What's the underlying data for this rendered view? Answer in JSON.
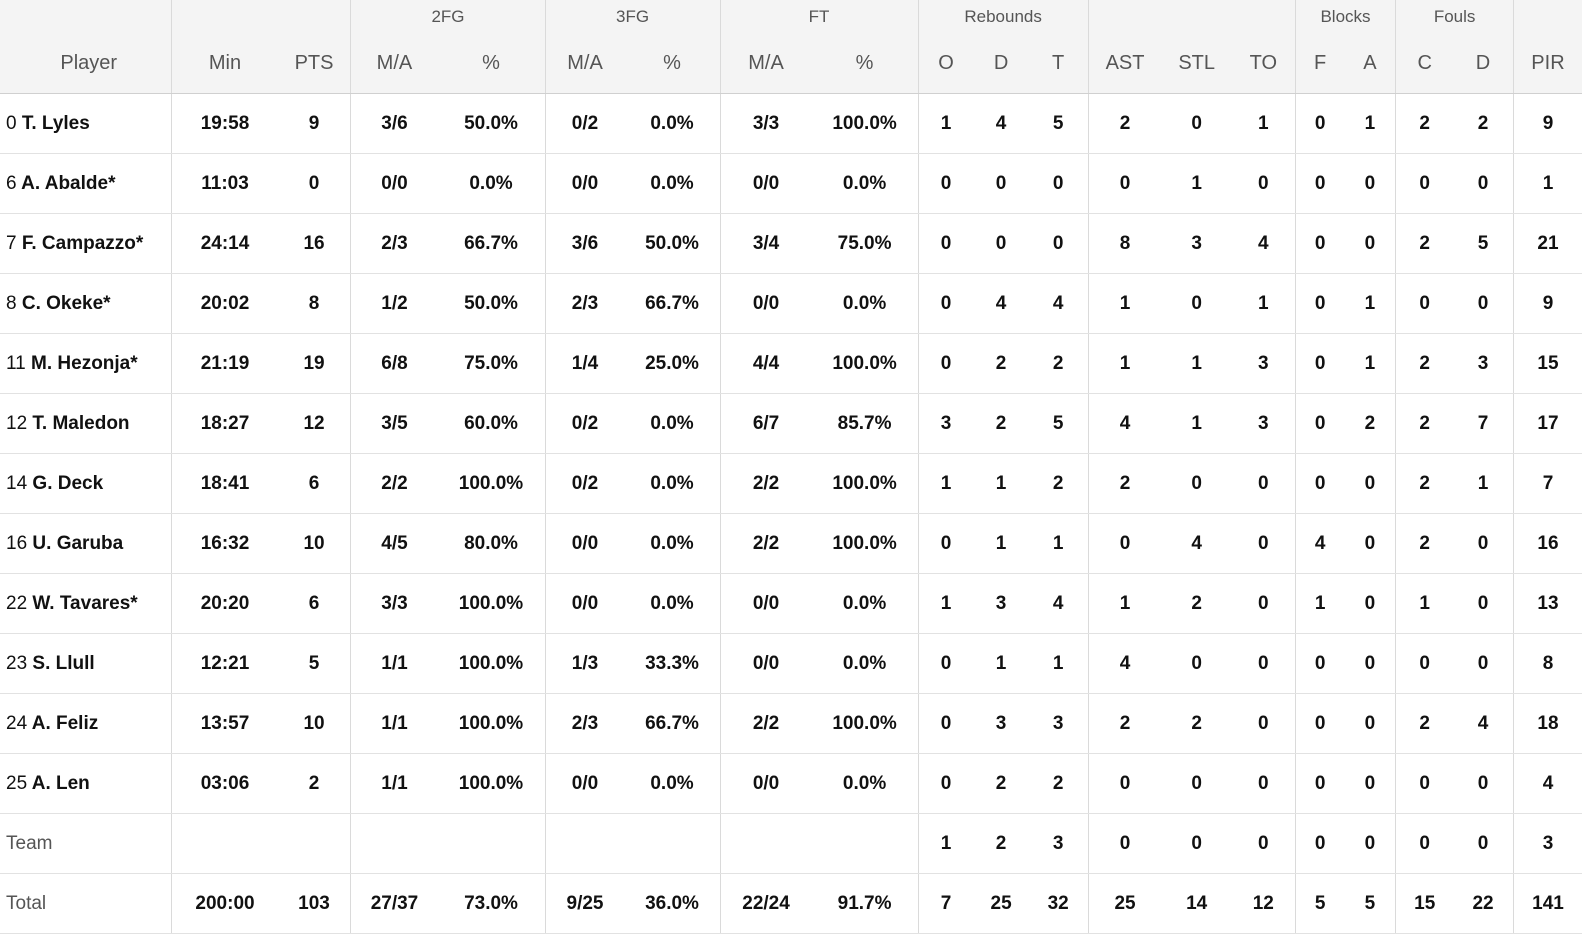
{
  "header": {
    "groups": [
      {
        "key": "player",
        "label": ""
      },
      {
        "key": "minpts",
        "label": ""
      },
      {
        "key": "fg2",
        "label": "2FG"
      },
      {
        "key": "fg3",
        "label": "3FG"
      },
      {
        "key": "ft",
        "label": "FT"
      },
      {
        "key": "reb",
        "label": "Rebounds"
      },
      {
        "key": "misc",
        "label": ""
      },
      {
        "key": "blk",
        "label": "Blocks"
      },
      {
        "key": "fouls",
        "label": "Fouls"
      },
      {
        "key": "pir",
        "label": ""
      }
    ],
    "columns": [
      "Player",
      "Min",
      "PTS",
      "M/A",
      "%",
      "M/A",
      "%",
      "M/A",
      "%",
      "O",
      "D",
      "T",
      "AST",
      "STL",
      "TO",
      "F",
      "A",
      "C",
      "D",
      "PIR"
    ]
  },
  "players": [
    {
      "num": "0",
      "name": "T. Lyles",
      "stats": [
        "19:58",
        "9",
        "3/6",
        "50.0%",
        "0/2",
        "0.0%",
        "3/3",
        "100.0%",
        "1",
        "4",
        "5",
        "2",
        "0",
        "1",
        "0",
        "1",
        "2",
        "2",
        "9"
      ]
    },
    {
      "num": "6",
      "name": "A. Abalde*",
      "stats": [
        "11:03",
        "0",
        "0/0",
        "0.0%",
        "0/0",
        "0.0%",
        "0/0",
        "0.0%",
        "0",
        "0",
        "0",
        "0",
        "1",
        "0",
        "0",
        "0",
        "0",
        "0",
        "1"
      ]
    },
    {
      "num": "7",
      "name": "F. Campazzo*",
      "stats": [
        "24:14",
        "16",
        "2/3",
        "66.7%",
        "3/6",
        "50.0%",
        "3/4",
        "75.0%",
        "0",
        "0",
        "0",
        "8",
        "3",
        "4",
        "0",
        "0",
        "2",
        "5",
        "21"
      ]
    },
    {
      "num": "8",
      "name": "C. Okeke*",
      "stats": [
        "20:02",
        "8",
        "1/2",
        "50.0%",
        "2/3",
        "66.7%",
        "0/0",
        "0.0%",
        "0",
        "4",
        "4",
        "1",
        "0",
        "1",
        "0",
        "1",
        "0",
        "0",
        "9"
      ]
    },
    {
      "num": "11",
      "name": "M. Hezonja*",
      "stats": [
        "21:19",
        "19",
        "6/8",
        "75.0%",
        "1/4",
        "25.0%",
        "4/4",
        "100.0%",
        "0",
        "2",
        "2",
        "1",
        "1",
        "3",
        "0",
        "1",
        "2",
        "3",
        "15"
      ]
    },
    {
      "num": "12",
      "name": "T. Maledon",
      "stats": [
        "18:27",
        "12",
        "3/5",
        "60.0%",
        "0/2",
        "0.0%",
        "6/7",
        "85.7%",
        "3",
        "2",
        "5",
        "4",
        "1",
        "3",
        "0",
        "2",
        "2",
        "7",
        "17"
      ]
    },
    {
      "num": "14",
      "name": "G. Deck",
      "stats": [
        "18:41",
        "6",
        "2/2",
        "100.0%",
        "0/2",
        "0.0%",
        "2/2",
        "100.0%",
        "1",
        "1",
        "2",
        "2",
        "0",
        "0",
        "0",
        "0",
        "2",
        "1",
        "7"
      ]
    },
    {
      "num": "16",
      "name": "U. Garuba",
      "stats": [
        "16:32",
        "10",
        "4/5",
        "80.0%",
        "0/0",
        "0.0%",
        "2/2",
        "100.0%",
        "0",
        "1",
        "1",
        "0",
        "4",
        "0",
        "4",
        "0",
        "2",
        "0",
        "16"
      ]
    },
    {
      "num": "22",
      "name": "W. Tavares*",
      "stats": [
        "20:20",
        "6",
        "3/3",
        "100.0%",
        "0/0",
        "0.0%",
        "0/0",
        "0.0%",
        "1",
        "3",
        "4",
        "1",
        "2",
        "0",
        "1",
        "0",
        "1",
        "0",
        "13"
      ]
    },
    {
      "num": "23",
      "name": "S. Llull",
      "stats": [
        "12:21",
        "5",
        "1/1",
        "100.0%",
        "1/3",
        "33.3%",
        "0/0",
        "0.0%",
        "0",
        "1",
        "1",
        "4",
        "0",
        "0",
        "0",
        "0",
        "0",
        "0",
        "8"
      ]
    },
    {
      "num": "24",
      "name": "A. Feliz",
      "stats": [
        "13:57",
        "10",
        "1/1",
        "100.0%",
        "2/3",
        "66.7%",
        "2/2",
        "100.0%",
        "0",
        "3",
        "3",
        "2",
        "2",
        "0",
        "0",
        "0",
        "2",
        "4",
        "18"
      ]
    },
    {
      "num": "25",
      "name": "A. Len",
      "stats": [
        "03:06",
        "2",
        "1/1",
        "100.0%",
        "0/0",
        "0.0%",
        "0/0",
        "0.0%",
        "0",
        "2",
        "2",
        "0",
        "0",
        "0",
        "0",
        "0",
        "0",
        "0",
        "4"
      ]
    }
  ],
  "team_row": {
    "label": "Team",
    "stats": [
      "",
      "",
      "",
      "",
      "",
      "",
      "",
      "",
      "1",
      "2",
      "3",
      "0",
      "0",
      "0",
      "0",
      "0",
      "0",
      "0",
      "3"
    ]
  },
  "total_row": {
    "label": "Total",
    "stats": [
      "200:00",
      "103",
      "27/37",
      "73.0%",
      "9/25",
      "36.0%",
      "22/24",
      "91.7%",
      "7",
      "25",
      "32",
      "25",
      "14",
      "12",
      "5",
      "5",
      "15",
      "22",
      "141"
    ]
  }
}
